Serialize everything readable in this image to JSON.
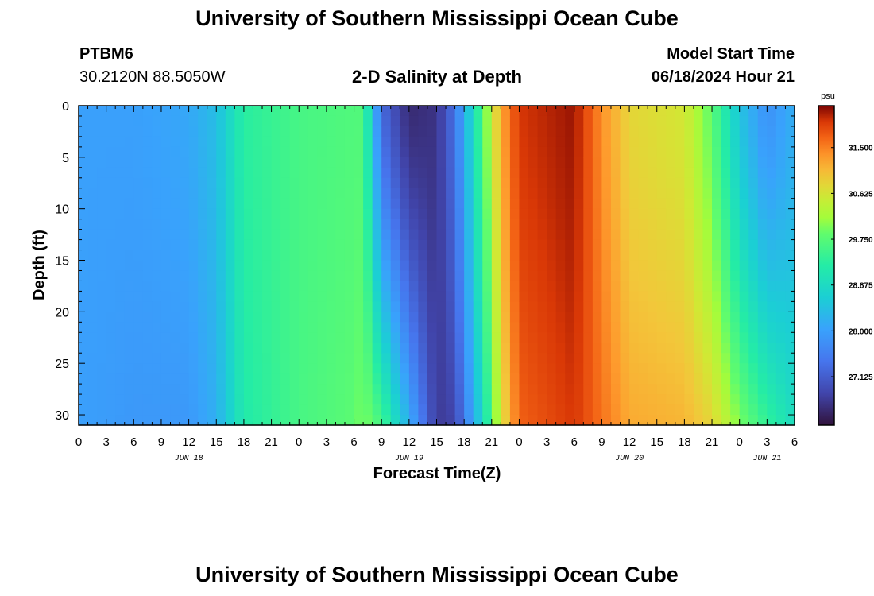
{
  "header": {
    "title": "University of Southern Mississippi Ocean Cube",
    "station_id": "PTBM6",
    "station_coords": "30.2120N  88.5050W",
    "chart_title": "2-D Salinity at Depth",
    "model_start_label": "Model Start Time",
    "model_start_value": "06/18/2024 Hour 21"
  },
  "footer": {
    "title": "University of Southern Mississippi Ocean Cube"
  },
  "chart_data": {
    "type": "heatmap",
    "title": "2-D Salinity at Depth",
    "xlabel": "Forecast Time(Z)",
    "ylabel": "Depth (ft)",
    "x_hours_from_start": [
      0,
      78
    ],
    "x_start_time": "06/18/2024 Hour 00Z",
    "x_tick_labels": [
      "0",
      "3",
      "6",
      "9",
      "12",
      "15",
      "18",
      "21",
      "0",
      "3",
      "6",
      "9",
      "12",
      "15",
      "18",
      "21",
      "0",
      "3",
      "6",
      "9",
      "12",
      "15",
      "18",
      "21",
      "0",
      "3",
      "6"
    ],
    "date_labels": [
      {
        "label": "JUN 18",
        "hour": 12
      },
      {
        "label": "JUN 19",
        "hour": 36
      },
      {
        "label": "JUN 20",
        "hour": 60
      },
      {
        "label": "JUN 21",
        "hour": 75
      }
    ],
    "y_range_ft": [
      0,
      31
    ],
    "y_tick_labels": [
      "0",
      "5",
      "10",
      "15",
      "20",
      "25",
      "30"
    ],
    "y_inverted": true,
    "colorbar": {
      "unit": "psu",
      "min": 26.2,
      "max": 32.3,
      "tick_labels": [
        "31.500",
        "30.625",
        "29.750",
        "28.875",
        "28.000",
        "27.125"
      ],
      "colormap": "turbo"
    },
    "salinity_profile_by_hour": [
      {
        "hour": 0,
        "surface": 28.0,
        "bottom": 28.0
      },
      {
        "hour": 6,
        "surface": 28.0,
        "bottom": 27.9
      },
      {
        "hour": 12,
        "surface": 28.1,
        "bottom": 27.9
      },
      {
        "hour": 15,
        "surface": 28.4,
        "bottom": 28.2
      },
      {
        "hour": 18,
        "surface": 29.3,
        "bottom": 29.2
      },
      {
        "hour": 24,
        "surface": 29.6,
        "bottom": 29.6
      },
      {
        "hour": 30,
        "surface": 29.7,
        "bottom": 29.8
      },
      {
        "hour": 31,
        "surface": 29.7,
        "bottom": 30.0
      },
      {
        "hour": 33,
        "surface": 27.3,
        "bottom": 29.6
      },
      {
        "hour": 36,
        "surface": 26.5,
        "bottom": 28.2
      },
      {
        "hour": 39,
        "surface": 26.6,
        "bottom": 26.7
      },
      {
        "hour": 41,
        "surface": 27.4,
        "bottom": 26.8
      },
      {
        "hour": 44,
        "surface": 29.7,
        "bottom": 28.8
      },
      {
        "hour": 46,
        "surface": 31.2,
        "bottom": 30.6
      },
      {
        "hour": 48,
        "surface": 32.0,
        "bottom": 31.7
      },
      {
        "hour": 54,
        "surface": 32.2,
        "bottom": 32.0
      },
      {
        "hour": 57,
        "surface": 31.4,
        "bottom": 31.6
      },
      {
        "hour": 60,
        "surface": 30.8,
        "bottom": 31.2
      },
      {
        "hour": 66,
        "surface": 30.6,
        "bottom": 31.1
      },
      {
        "hour": 69,
        "surface": 29.8,
        "bottom": 30.8
      },
      {
        "hour": 72,
        "surface": 28.5,
        "bottom": 30.0
      },
      {
        "hour": 75,
        "surface": 27.8,
        "bottom": 29.4
      },
      {
        "hour": 78,
        "surface": 28.2,
        "bottom": 28.9
      }
    ]
  }
}
